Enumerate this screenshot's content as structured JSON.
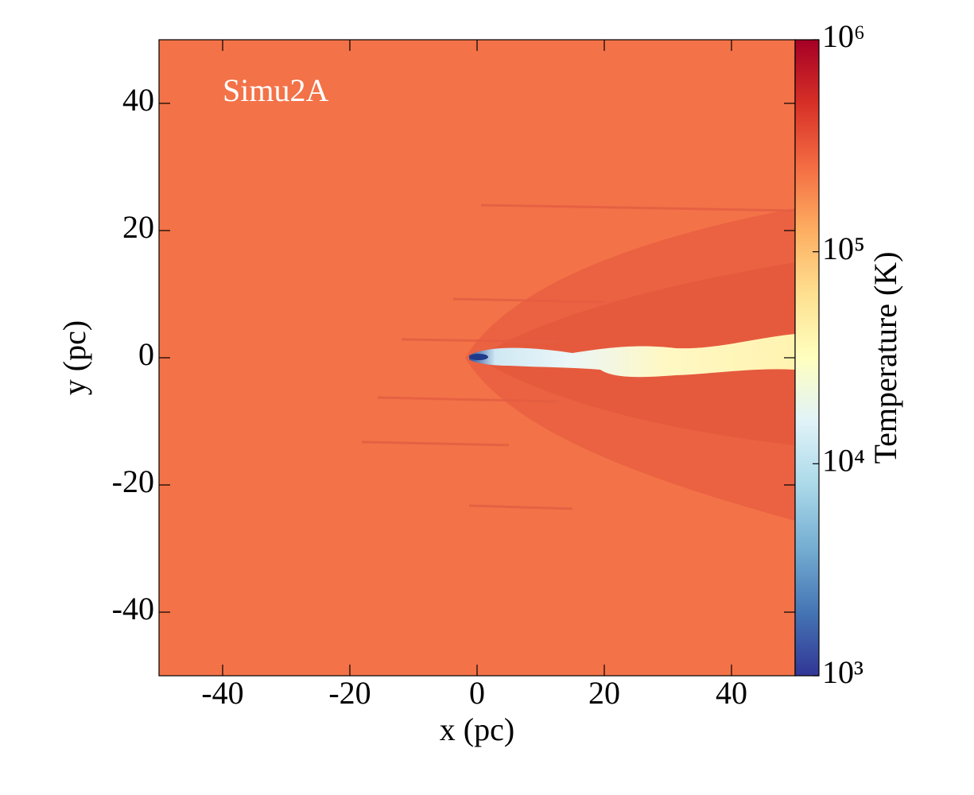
{
  "chart_data": {
    "type": "heatmap",
    "annotation": "Simu2A",
    "xlabel": "x  (pc)",
    "ylabel": "y  (pc)",
    "xlim": [
      -50,
      50
    ],
    "ylim": [
      -50,
      50
    ],
    "xticks": [
      -40,
      -20,
      0,
      20,
      40
    ],
    "yticks": [
      -40,
      -20,
      0,
      20,
      40
    ],
    "colorbar": {
      "label": "Temperature  (K)",
      "scale": "log",
      "lim": [
        1000,
        1000000
      ],
      "ticks": [
        {
          "value": 1000,
          "label": "10³"
        },
        {
          "value": 10000,
          "label": "10⁴"
        },
        {
          "value": 100000,
          "label": "10⁵"
        },
        {
          "value": 1000000,
          "label": "10⁶"
        }
      ],
      "colormap": "RdYlBu_r"
    }
  }
}
